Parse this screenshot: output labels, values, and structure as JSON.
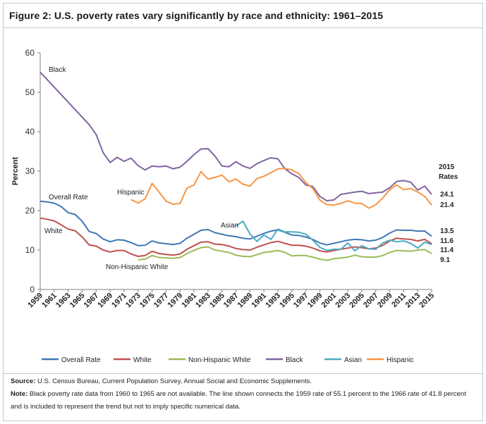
{
  "figure_title": "Figure 2: U.S. poverty rates vary significantly by race and ethnicity: 1961–2015",
  "colors": {
    "Overall Rate": "#3f78b5",
    "White": "#c0504d",
    "Non-Hispanic White": "#9bbb59",
    "Black": "#8064a2",
    "Asian": "#4bacc6",
    "Hispanic": "#f79646"
  },
  "footer": {
    "source_label": "Source:",
    "source_text": " U.S. Census Bureau, Current Population Survey, Annual Social and Economic Supplements.",
    "note_label": "Note:",
    "note_text": " Black poverty rate data from 1960 to 1965 are not available. The line shown connects the 1959 rate of 55.1 percent to the 1966 rate of 41.8 percent and is included to represent the trend but not to imply specific numerical data."
  },
  "chart_data": {
    "type": "line",
    "title": "Figure 2: U.S. poverty rates vary significantly by race and ethnicity: 1961–2015",
    "xlabel": "",
    "ylabel": "Percent",
    "ylim": [
      0,
      60
    ],
    "yticks": [
      0,
      10,
      20,
      30,
      40,
      50,
      60
    ],
    "xlim": [
      1959,
      2015
    ],
    "xticks": [
      1959,
      1961,
      1963,
      1965,
      1967,
      1969,
      1971,
      1973,
      1975,
      1977,
      1979,
      1981,
      1983,
      1985,
      1987,
      1989,
      1991,
      1993,
      1995,
      1997,
      1999,
      2001,
      2003,
      2005,
      2007,
      2009,
      2011,
      2013,
      2015
    ],
    "grid": false,
    "legend_position": "bottom",
    "rates_header": [
      "2015",
      "Rates"
    ],
    "series": [
      {
        "name": "Overall Rate",
        "label": "Overall Rate",
        "end_value_label": "13.5",
        "x": [
          1959,
          1960,
          1961,
          1962,
          1963,
          1964,
          1965,
          1966,
          1967,
          1968,
          1969,
          1970,
          1971,
          1972,
          1973,
          1974,
          1975,
          1976,
          1977,
          1978,
          1979,
          1980,
          1981,
          1982,
          1983,
          1984,
          1985,
          1986,
          1987,
          1988,
          1989,
          1990,
          1991,
          1992,
          1993,
          1994,
          1995,
          1996,
          1997,
          1998,
          1999,
          2000,
          2001,
          2002,
          2003,
          2004,
          2005,
          2006,
          2007,
          2008,
          2009,
          2010,
          2011,
          2012,
          2013,
          2014,
          2015
        ],
        "values": [
          22.4,
          22.2,
          21.9,
          21.0,
          19.5,
          19.0,
          17.3,
          14.7,
          14.2,
          12.8,
          12.1,
          12.6,
          12.5,
          11.9,
          11.1,
          11.2,
          12.3,
          11.8,
          11.6,
          11.4,
          11.7,
          13.0,
          14.0,
          15.0,
          15.2,
          14.4,
          14.0,
          13.6,
          13.4,
          13.0,
          12.8,
          13.5,
          14.2,
          14.8,
          15.1,
          14.5,
          13.8,
          13.7,
          13.3,
          12.7,
          11.8,
          11.3,
          11.7,
          12.1,
          12.5,
          12.7,
          12.6,
          12.3,
          12.5,
          13.2,
          14.3,
          15.1,
          15.0,
          15.0,
          14.8,
          14.8,
          13.5
        ]
      },
      {
        "name": "White",
        "label": "White",
        "end_value_label": "11.6",
        "x": [
          1959,
          1960,
          1961,
          1962,
          1963,
          1964,
          1965,
          1966,
          1967,
          1968,
          1969,
          1970,
          1971,
          1972,
          1973,
          1974,
          1975,
          1976,
          1977,
          1978,
          1979,
          1980,
          1981,
          1982,
          1983,
          1984,
          1985,
          1986,
          1987,
          1988,
          1989,
          1990,
          1991,
          1992,
          1993,
          1994,
          1995,
          1996,
          1997,
          1998,
          1999,
          2000,
          2001,
          2002,
          2003,
          2004,
          2005,
          2006,
          2007,
          2008,
          2009,
          2010,
          2011,
          2012,
          2013,
          2014,
          2015
        ],
        "values": [
          18.1,
          17.8,
          17.4,
          16.4,
          15.3,
          14.9,
          13.3,
          11.3,
          11.0,
          10.0,
          9.5,
          9.9,
          9.9,
          9.0,
          8.4,
          8.6,
          9.7,
          9.1,
          8.9,
          8.7,
          9.0,
          10.2,
          11.1,
          12.0,
          12.1,
          11.5,
          11.4,
          11.0,
          10.4,
          10.1,
          10.0,
          10.7,
          11.3,
          11.9,
          12.2,
          11.7,
          11.2,
          11.2,
          11.0,
          10.5,
          9.8,
          9.5,
          9.9,
          10.2,
          10.5,
          10.8,
          10.6,
          10.3,
          10.5,
          11.2,
          12.3,
          13.0,
          12.8,
          12.7,
          12.3,
          12.7,
          11.6
        ]
      },
      {
        "name": "Non-Hispanic White",
        "label": "Non-Hispanic White",
        "end_value_label": "9.1",
        "x": [
          1973,
          1974,
          1975,
          1976,
          1977,
          1978,
          1979,
          1980,
          1981,
          1982,
          1983,
          1984,
          1985,
          1986,
          1987,
          1988,
          1989,
          1990,
          1991,
          1992,
          1993,
          1994,
          1995,
          1996,
          1997,
          1998,
          1999,
          2000,
          2001,
          2002,
          2003,
          2004,
          2005,
          2006,
          2007,
          2008,
          2009,
          2010,
          2011,
          2012,
          2013,
          2014,
          2015
        ],
        "values": [
          7.5,
          7.7,
          8.6,
          8.1,
          8.0,
          7.9,
          8.1,
          9.1,
          9.9,
          10.6,
          10.8,
          10.0,
          9.7,
          9.4,
          8.7,
          8.4,
          8.3,
          8.8,
          9.4,
          9.6,
          9.9,
          9.4,
          8.5,
          8.6,
          8.6,
          8.2,
          7.7,
          7.4,
          7.8,
          8.0,
          8.2,
          8.7,
          8.3,
          8.2,
          8.2,
          8.6,
          9.4,
          9.9,
          9.8,
          9.7,
          10.0,
          10.1,
          9.1
        ]
      },
      {
        "name": "Black",
        "label": "Black",
        "end_value_label": "24.1",
        "x": [
          1959,
          1966,
          1967,
          1968,
          1969,
          1970,
          1971,
          1972,
          1973,
          1974,
          1975,
          1976,
          1977,
          1978,
          1979,
          1980,
          1981,
          1982,
          1983,
          1984,
          1985,
          1986,
          1987,
          1988,
          1989,
          1990,
          1991,
          1992,
          1993,
          1994,
          1995,
          1996,
          1997,
          1998,
          1999,
          2000,
          2001,
          2002,
          2003,
          2004,
          2005,
          2006,
          2007,
          2008,
          2009,
          2010,
          2011,
          2012,
          2013,
          2014,
          2015
        ],
        "values": [
          55.1,
          41.8,
          39.3,
          34.7,
          32.2,
          33.5,
          32.5,
          33.3,
          31.4,
          30.3,
          31.3,
          31.1,
          31.3,
          30.6,
          31.0,
          32.5,
          34.2,
          35.6,
          35.7,
          33.8,
          31.3,
          31.1,
          32.4,
          31.3,
          30.7,
          31.9,
          32.7,
          33.4,
          33.1,
          30.6,
          29.3,
          28.4,
          26.5,
          26.1,
          23.6,
          22.5,
          22.7,
          24.1,
          24.4,
          24.7,
          24.9,
          24.3,
          24.5,
          24.7,
          25.8,
          27.4,
          27.6,
          27.2,
          25.2,
          26.2,
          24.1
        ]
      },
      {
        "name": "Asian",
        "label": "Asian",
        "end_value_label": "11.4",
        "x": [
          1987,
          1988,
          1989,
          1990,
          1991,
          1992,
          1993,
          1994,
          1995,
          1996,
          1997,
          1998,
          1999,
          2000,
          2001,
          2002,
          2003,
          2004,
          2005,
          2006,
          2007,
          2008,
          2009,
          2010,
          2011,
          2012,
          2013,
          2014,
          2015
        ],
        "values": [
          16.1,
          17.3,
          14.1,
          12.2,
          13.8,
          12.7,
          15.3,
          14.6,
          14.6,
          14.5,
          14.0,
          12.5,
          10.7,
          9.9,
          10.2,
          10.2,
          11.8,
          9.8,
          11.1,
          10.3,
          10.2,
          11.8,
          12.5,
          12.1,
          12.3,
          11.7,
          10.5,
          12.0,
          11.4
        ]
      },
      {
        "name": "Hispanic",
        "label": "Hispanic",
        "end_value_label": "21.4",
        "x": [
          1972,
          1973,
          1974,
          1975,
          1976,
          1977,
          1978,
          1979,
          1980,
          1981,
          1982,
          1983,
          1984,
          1985,
          1986,
          1987,
          1988,
          1989,
          1990,
          1991,
          1992,
          1993,
          1994,
          1995,
          1996,
          1997,
          1998,
          1999,
          2000,
          2001,
          2002,
          2003,
          2004,
          2005,
          2006,
          2007,
          2008,
          2009,
          2010,
          2011,
          2012,
          2013,
          2014,
          2015
        ],
        "values": [
          22.8,
          21.9,
          23.0,
          26.9,
          24.7,
          22.4,
          21.6,
          21.8,
          25.7,
          26.5,
          29.9,
          28.0,
          28.4,
          29.0,
          27.3,
          28.0,
          26.7,
          26.2,
          28.1,
          28.7,
          29.6,
          30.6,
          30.7,
          30.3,
          29.4,
          27.1,
          25.6,
          22.7,
          21.5,
          21.4,
          21.8,
          22.5,
          21.9,
          21.8,
          20.6,
          21.5,
          23.2,
          25.3,
          26.5,
          25.3,
          25.6,
          24.7,
          23.6,
          21.4
        ]
      }
    ],
    "annotations": {
      "Black": "Black",
      "Overall Rate": "Overall Rate",
      "White": "White",
      "Hispanic": "Hispanic",
      "Asian": "Asian",
      "Non-Hispanic White": "Non-Hispanic White"
    }
  }
}
